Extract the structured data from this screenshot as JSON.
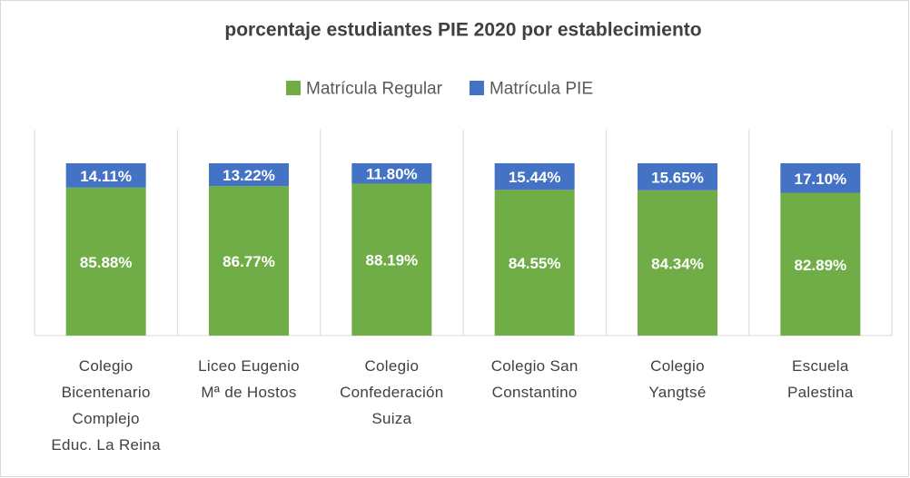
{
  "chart_data": {
    "type": "stacked_bar",
    "title": "porcentaje estudiantes PIE 2020 por establecimiento",
    "categories": [
      "Colegio Bicentenario Complejo Educ. La Reina",
      "Liceo Eugenio Mª de Hostos",
      "Colegio Confederación Suiza",
      "Colegio San Constantino",
      "Colegio Yangtsé",
      "Escuela Palestina"
    ],
    "series": [
      {
        "name": "Matrícula Regular",
        "color": "#70ad47",
        "values": [
          85.88,
          86.77,
          88.19,
          84.55,
          84.34,
          82.89
        ],
        "value_labels": [
          "85.88%",
          "86.77%",
          "88.19%",
          "84.55%",
          "84.34%",
          "82.89%"
        ]
      },
      {
        "name": "Matrícula PIE",
        "color": "#4472c4",
        "values": [
          14.11,
          13.22,
          11.8,
          15.44,
          15.65,
          17.1
        ],
        "value_labels": [
          "14.11%",
          "13.22%",
          "11.80%",
          "15.44%",
          "15.65%",
          "17.10%"
        ]
      }
    ],
    "ylim": [
      0,
      100
    ],
    "legend": "top"
  }
}
